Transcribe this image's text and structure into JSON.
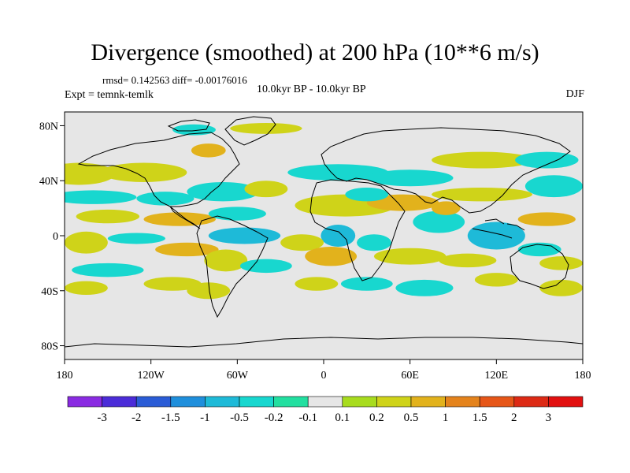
{
  "header": {
    "title": "Divergence (smoothed) at 200 hPa (10**6 m/s)",
    "stats": "rmsd= 0.142563 diff= -0.00176016",
    "expt": "Expt = temnk-temlk",
    "period": "10.0kyr BP - 10.0kyr BP",
    "season": "DJF"
  },
  "chart_data": {
    "type": "heatmap",
    "title": "Divergence (smoothed) at 200 hPa (10**6 m/s)",
    "projection": "cylindrical-equidistant",
    "xlim": [
      -180,
      180
    ],
    "ylim": [
      -90,
      90
    ],
    "x_ticks": [
      {
        "value": -180,
        "label": "180"
      },
      {
        "value": -120,
        "label": "120W"
      },
      {
        "value": -60,
        "label": "60W"
      },
      {
        "value": 0,
        "label": "0"
      },
      {
        "value": 60,
        "label": "60E"
      },
      {
        "value": 120,
        "label": "120E"
      },
      {
        "value": 180,
        "label": "180"
      }
    ],
    "y_ticks": [
      {
        "value": 80,
        "label": "80N"
      },
      {
        "value": 40,
        "label": "40N"
      },
      {
        "value": 0,
        "label": "0"
      },
      {
        "value": -40,
        "label": "40S"
      },
      {
        "value": -80,
        "label": "80S"
      }
    ],
    "colorbar": {
      "labels": [
        "-3",
        "-2",
        "-1.5",
        "-1",
        "-0.5",
        "-0.2",
        "-0.1",
        "0.1",
        "0.2",
        "0.5",
        "1",
        "1.5",
        "2",
        "3"
      ],
      "colors": [
        "#8a2be2",
        "#4b2cd8",
        "#2a5cd6",
        "#1f8fdc",
        "#1ebad8",
        "#18d7cf",
        "#22dfa0",
        "#e6e6e6",
        "#a8dc1e",
        "#cfd319",
        "#e2b21c",
        "#e4831c",
        "#e65618",
        "#dd2a15",
        "#e21010"
      ]
    },
    "anomaly_regions": [
      {
        "lon": -170,
        "lat": 45,
        "rlon": 25,
        "rlat": 8,
        "value": 0.3
      },
      {
        "lon": -125,
        "lat": 46,
        "rlon": 30,
        "rlat": 7,
        "value": 0.2
      },
      {
        "lon": -160,
        "lat": 28,
        "rlon": 30,
        "rlat": 5,
        "value": -0.3
      },
      {
        "lon": -110,
        "lat": 27,
        "rlon": 20,
        "rlat": 5,
        "value": -0.4
      },
      {
        "lon": -70,
        "lat": 32,
        "rlon": 25,
        "rlat": 7,
        "value": -0.5
      },
      {
        "lon": -40,
        "lat": 34,
        "rlon": 15,
        "rlat": 6,
        "value": 0.2
      },
      {
        "lon": -150,
        "lat": 14,
        "rlon": 22,
        "rlat": 5,
        "value": 0.3
      },
      {
        "lon": -100,
        "lat": 12,
        "rlon": 25,
        "rlat": 5,
        "value": 0.6
      },
      {
        "lon": -60,
        "lat": 16,
        "rlon": 20,
        "rlat": 5,
        "value": -0.3
      },
      {
        "lon": -165,
        "lat": -5,
        "rlon": 15,
        "rlat": 8,
        "value": 0.4
      },
      {
        "lon": -130,
        "lat": -2,
        "rlon": 20,
        "rlat": 4,
        "value": -0.4
      },
      {
        "lon": -95,
        "lat": -10,
        "rlon": 22,
        "rlat": 5,
        "value": 0.5
      },
      {
        "lon": -55,
        "lat": 0,
        "rlon": 25,
        "rlat": 6,
        "value": -0.6
      },
      {
        "lon": -68,
        "lat": -18,
        "rlon": 15,
        "rlat": 8,
        "value": 0.4
      },
      {
        "lon": -40,
        "lat": -22,
        "rlon": 18,
        "rlat": 5,
        "value": -0.3
      },
      {
        "lon": -150,
        "lat": -25,
        "rlon": 25,
        "rlat": 5,
        "value": -0.3
      },
      {
        "lon": -165,
        "lat": -38,
        "rlon": 15,
        "rlat": 5,
        "value": 0.2
      },
      {
        "lon": -105,
        "lat": -35,
        "rlon": 20,
        "rlat": 5,
        "value": 0.2
      },
      {
        "lon": -80,
        "lat": -40,
        "rlon": 15,
        "rlat": 6,
        "value": 0.3
      },
      {
        "lon": -40,
        "lat": 78,
        "rlon": 25,
        "rlat": 4,
        "value": 0.2
      },
      {
        "lon": -80,
        "lat": 62,
        "rlon": 12,
        "rlat": 5,
        "value": 0.5
      },
      {
        "lon": -90,
        "lat": 77,
        "rlon": 15,
        "rlat": 4,
        "value": -0.3
      },
      {
        "lon": 10,
        "lat": 46,
        "rlon": 35,
        "rlat": 6,
        "value": -0.3
      },
      {
        "lon": 60,
        "lat": 42,
        "rlon": 30,
        "rlat": 6,
        "value": -0.3
      },
      {
        "lon": 110,
        "lat": 55,
        "rlon": 35,
        "rlat": 6,
        "value": 0.2
      },
      {
        "lon": 155,
        "lat": 55,
        "rlon": 22,
        "rlat": 6,
        "value": -0.3
      },
      {
        "lon": 15,
        "lat": 22,
        "rlon": 35,
        "rlat": 8,
        "value": 0.4
      },
      {
        "lon": 55,
        "lat": 24,
        "rlon": 25,
        "rlat": 6,
        "value": 0.6
      },
      {
        "lon": 110,
        "lat": 30,
        "rlon": 35,
        "rlat": 5,
        "value": 0.3
      },
      {
        "lon": 160,
        "lat": 36,
        "rlon": 20,
        "rlat": 8,
        "value": -0.3
      },
      {
        "lon": 155,
        "lat": 12,
        "rlon": 20,
        "rlat": 5,
        "value": 0.5
      },
      {
        "lon": 30,
        "lat": 30,
        "rlon": 15,
        "rlat": 5,
        "value": -0.5
      },
      {
        "lon": 80,
        "lat": 10,
        "rlon": 18,
        "rlat": 8,
        "value": -0.4
      },
      {
        "lon": 85,
        "lat": 20,
        "rlon": 10,
        "rlat": 5,
        "value": 0.9
      },
      {
        "lon": 120,
        "lat": 0,
        "rlon": 20,
        "rlat": 10,
        "value": -0.8
      },
      {
        "lon": 10,
        "lat": 0,
        "rlon": 12,
        "rlat": 8,
        "value": -0.8
      },
      {
        "lon": 35,
        "lat": -5,
        "rlon": 12,
        "rlat": 6,
        "value": -0.4
      },
      {
        "lon": -15,
        "lat": -5,
        "rlon": 15,
        "rlat": 6,
        "value": 0.4
      },
      {
        "lon": 5,
        "lat": -15,
        "rlon": 18,
        "rlat": 7,
        "value": 0.5
      },
      {
        "lon": 60,
        "lat": -15,
        "rlon": 25,
        "rlat": 6,
        "value": 0.4
      },
      {
        "lon": 100,
        "lat": -18,
        "rlon": 20,
        "rlat": 5,
        "value": 0.3
      },
      {
        "lon": 150,
        "lat": -10,
        "rlon": 15,
        "rlat": 5,
        "value": -0.3
      },
      {
        "lon": 165,
        "lat": -20,
        "rlon": 15,
        "rlat": 5,
        "value": 0.3
      },
      {
        "lon": 30,
        "lat": -35,
        "rlon": 18,
        "rlat": 5,
        "value": -0.3
      },
      {
        "lon": 70,
        "lat": -38,
        "rlon": 20,
        "rlat": 6,
        "value": -0.3
      },
      {
        "lon": 120,
        "lat": -32,
        "rlon": 15,
        "rlat": 5,
        "value": 0.2
      },
      {
        "lon": 165,
        "lat": -38,
        "rlon": 15,
        "rlat": 6,
        "value": 0.3
      },
      {
        "lon": -5,
        "lat": -35,
        "rlon": 15,
        "rlat": 5,
        "value": 0.2
      }
    ]
  }
}
